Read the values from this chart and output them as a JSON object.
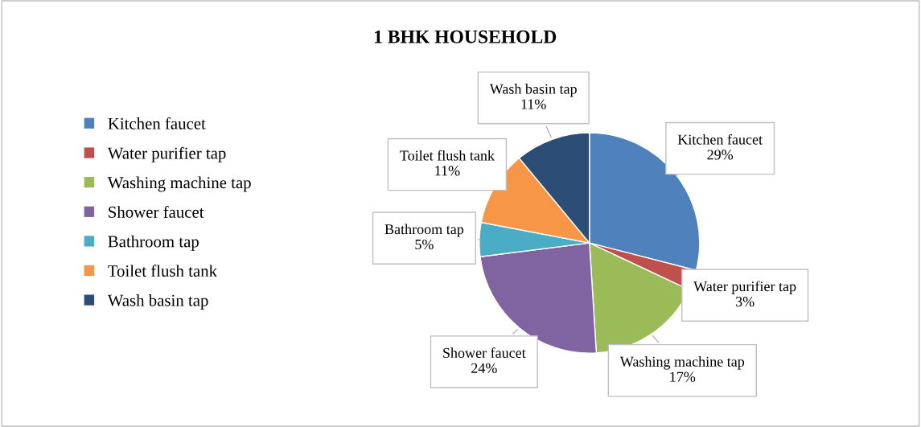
{
  "chart_data": {
    "type": "pie",
    "title": "1 BHK HOUSEHOLD",
    "categories": [
      "Kitchen faucet",
      "Water purifier tap",
      "Washing machine tap",
      "Shower faucet",
      "Bathroom tap",
      "Toilet flush tank",
      "Wash basin tap"
    ],
    "values": [
      29,
      3,
      17,
      24,
      5,
      11,
      11
    ],
    "value_labels": [
      "29%",
      "3%",
      "17%",
      "24%",
      "5%",
      "11%",
      "11%"
    ],
    "colors": [
      "#4f81bd",
      "#c0504d",
      "#9bbb59",
      "#8064a2",
      "#4bacc6",
      "#f79646",
      "#2c4d75"
    ],
    "legend": "left"
  }
}
